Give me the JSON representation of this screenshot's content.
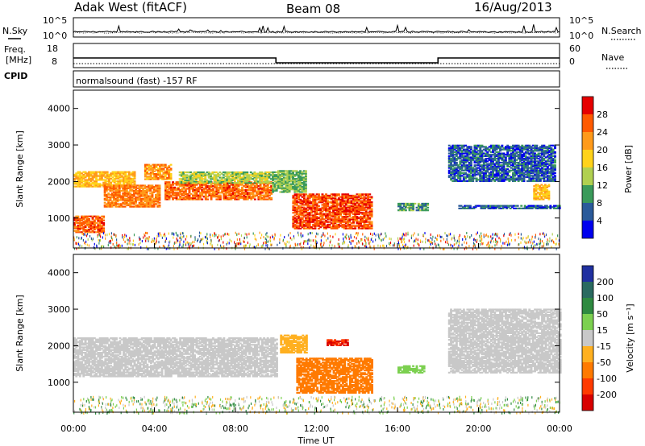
{
  "header": {
    "title": "Adak West (fitACF)",
    "beam": "Beam 08",
    "date": "16/Aug/2013"
  },
  "noise_panel": {
    "left_label": "N.Sky",
    "right_label": "N.Search",
    "left_ticks": [
      "10^5",
      "10^0"
    ],
    "right_ticks": [
      "10^5",
      "10^0"
    ]
  },
  "freq_panel": {
    "left_label_1": "Freq.",
    "left_label_2": "[MHz]",
    "right_label": "Nave",
    "left_ticks": [
      "18",
      "8"
    ],
    "right_ticks": [
      "60",
      "0"
    ]
  },
  "cpid": {
    "label": "CPID",
    "text": "normalsound (fast) -157 RF"
  },
  "power_panel": {
    "ylabel": "Slant Range [km]",
    "colorbar_label": "Power [dB]",
    "colorbar_ticks": [
      "28",
      "24",
      "20",
      "16",
      "12",
      "8",
      "4"
    ],
    "colorbar_colors": [
      "#e60000",
      "#ff5a00",
      "#ff9a1a",
      "#ffd21a",
      "#b0d050",
      "#3a9a5a",
      "#2a5a9a",
      "#0000ee"
    ]
  },
  "velocity_panel": {
    "ylabel": "Slant Range [km]",
    "colorbar_label": "Velocity [m s⁻¹]",
    "colorbar_ticks": [
      "200",
      "100",
      "50",
      "15",
      "-15",
      "-50",
      "-100",
      "-200"
    ],
    "colorbar_colors": [
      "#2030a0",
      "#2a6a60",
      "#2e8a40",
      "#7cd050",
      "#c8c8c8",
      "#ffb020",
      "#ff7a00",
      "#ff3a00",
      "#d80000"
    ]
  },
  "xaxis": {
    "label": "Time UT",
    "ticks": [
      "00:00",
      "04:00",
      "08:00",
      "12:00",
      "16:00",
      "20:00",
      "00:00"
    ]
  },
  "chart_data": {
    "type": "heatmap",
    "title": "Adak West (fitACF)",
    "subtitle": "Beam 08",
    "date": "16/Aug/2013",
    "x_range_hours": [
      0,
      24
    ],
    "xlabel": "Time UT",
    "y_range_km": [
      180,
      4500
    ],
    "yticks_km": [
      1000,
      2000,
      3000,
      4000
    ],
    "ylabel": "Slant Range [km]",
    "frequency_steps_mhz": [
      {
        "t": [
          0,
          10
        ],
        "value": 12
      },
      {
        "t": [
          10,
          18
        ],
        "value": 10
      },
      {
        "t": [
          18,
          24
        ],
        "value": 12
      }
    ],
    "nave": 6,
    "noise_sky_log10": 1.2,
    "noise_search_log10": 1.0,
    "power_bands": [
      {
        "t": [
          0.0,
          1.5
        ],
        "range": [
          600,
          1050
        ],
        "db": 26
      },
      {
        "t": [
          0.0,
          3.0
        ],
        "range": [
          1850,
          2250
        ],
        "db": 20
      },
      {
        "t": [
          1.5,
          4.2
        ],
        "range": [
          1300,
          1900
        ],
        "db": 24
      },
      {
        "t": [
          3.5,
          4.8
        ],
        "range": [
          2050,
          2450
        ],
        "db": 22
      },
      {
        "t": [
          4.5,
          9.8
        ],
        "range": [
          1500,
          2000
        ],
        "db": 25
      },
      {
        "t": [
          5.2,
          9.8
        ],
        "range": [
          1950,
          2250
        ],
        "db": 14
      },
      {
        "t": [
          9.8,
          11.5
        ],
        "range": [
          1700,
          2300
        ],
        "db": 12
      },
      {
        "t": [
          10.8,
          14.7
        ],
        "range": [
          700,
          1650
        ],
        "db": 27
      },
      {
        "t": [
          16.0,
          17.5
        ],
        "range": [
          1200,
          1400
        ],
        "db": 10
      },
      {
        "t": [
          18.5,
          23.8
        ],
        "range": [
          2000,
          3000
        ],
        "db": 6
      },
      {
        "t": [
          22.7,
          23.5
        ],
        "range": [
          1500,
          1900
        ],
        "db": 20
      },
      {
        "t": [
          19.0,
          24.0
        ],
        "range": [
          1250,
          1350
        ],
        "db": 6
      }
    ],
    "velocity_bands": [
      {
        "t": [
          0.0,
          10.0
        ],
        "range": [
          1150,
          2200
        ],
        "vel": 0
      },
      {
        "t": [
          10.2,
          11.5
        ],
        "range": [
          1800,
          2300
        ],
        "vel": -40
      },
      {
        "t": [
          11.0,
          14.7
        ],
        "range": [
          700,
          1650
        ],
        "vel": -90
      },
      {
        "t": [
          12.5,
          13.5
        ],
        "range": [
          2000,
          2150
        ],
        "vel": -200
      },
      {
        "t": [
          16.0,
          17.3
        ],
        "range": [
          1250,
          1450
        ],
        "vel": 40
      },
      {
        "t": [
          18.5,
          24.0
        ],
        "range": [
          1250,
          3000
        ],
        "vel": 0
      }
    ]
  }
}
